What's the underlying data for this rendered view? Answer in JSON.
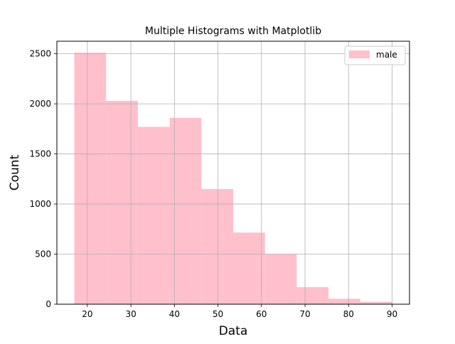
{
  "chart_data": {
    "type": "bar",
    "title": "Multiple Histograms with Matplotlib",
    "xlabel": "Data",
    "ylabel": "Count",
    "xlim": [
      13,
      94
    ],
    "ylim": [
      0,
      2625
    ],
    "xticks": [
      20,
      30,
      40,
      50,
      60,
      70,
      80,
      90
    ],
    "yticks": [
      0,
      500,
      1000,
      1500,
      2000,
      2500
    ],
    "grid": true,
    "legend_position": "top-right",
    "bin_edges": [
      17,
      24.3,
      31.6,
      38.9,
      46.2,
      53.5,
      60.8,
      68.1,
      75.4,
      82.7,
      90
    ],
    "series": [
      {
        "name": "male",
        "color": "#ffc0cb",
        "values": [
          2510,
          2030,
          1770,
          1860,
          1150,
          715,
          500,
          170,
          55,
          25
        ]
      }
    ]
  }
}
